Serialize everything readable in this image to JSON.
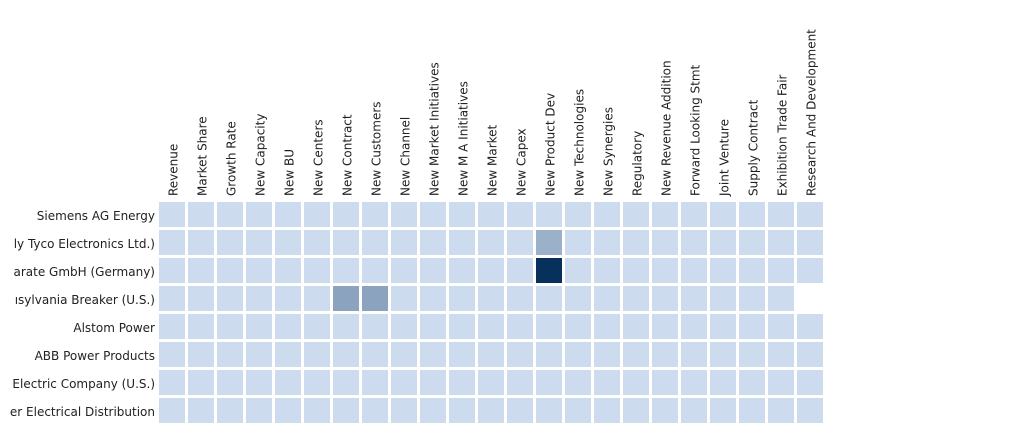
{
  "chart_data": {
    "type": "heatmap",
    "title": "",
    "xlabel": "",
    "ylabel": "",
    "columns": [
      "Revenue",
      "Market Share",
      "Growth Rate",
      "New Capacity",
      "New BU",
      "New Centers",
      "New Contract",
      "New Customers",
      "New Channel",
      "New Market Initiatives",
      "New M A Initiatives",
      "New Market",
      "New Capex",
      "New Product Dev",
      "New Technologies",
      "New Synergies",
      "Regulatory",
      "New Revenue Addition",
      "Forward Looking Stmt",
      "Joint Venture",
      "Supply Contract",
      "Exhibition Trade Fair",
      "Research And Development"
    ],
    "rows": [
      "Siemens AG Energy",
      "ly Tyco Electronics Ltd.)",
      "arate GmbH (Germany)",
      "ısylvania Breaker (U.S.)",
      "Alstom Power",
      "ABB Power Products",
      "Electric Company (U.S.)",
      "er Electrical Distribution"
    ],
    "values": [
      [
        0,
        0,
        0,
        0,
        0,
        0,
        0,
        0,
        0,
        0,
        0,
        0,
        0,
        0,
        0,
        0,
        0,
        0,
        0,
        0,
        0,
        0,
        0
      ],
      [
        0,
        0,
        0,
        0,
        0,
        0,
        0,
        0,
        0,
        0,
        0,
        0,
        0,
        0.25,
        0,
        0,
        0,
        0,
        0,
        0,
        0,
        0,
        0
      ],
      [
        0,
        0,
        0,
        0,
        0,
        0,
        0,
        0,
        0,
        0,
        0,
        0,
        0,
        1,
        0,
        0,
        0,
        0,
        0,
        0,
        0,
        0,
        0
      ],
      [
        0,
        0,
        0,
        0,
        0,
        0,
        0.33,
        0.33,
        0,
        0,
        0,
        0,
        0,
        0,
        0,
        0,
        0,
        0,
        0,
        0,
        0,
        0
      ],
      [
        0,
        0,
        0,
        0,
        0,
        0,
        0,
        0,
        0,
        0,
        0,
        0,
        0,
        0,
        0,
        0,
        0,
        0,
        0,
        0,
        0,
        0,
        0
      ],
      [
        0,
        0,
        0,
        0,
        0,
        0,
        0,
        0,
        0,
        0,
        0,
        0,
        0,
        0,
        0,
        0,
        0,
        0,
        0,
        0,
        0,
        0,
        0
      ],
      [
        0,
        0,
        0,
        0,
        0,
        0,
        0,
        0,
        0,
        0,
        0,
        0,
        0,
        0,
        0,
        0,
        0,
        0,
        0,
        0,
        0,
        0,
        0
      ],
      [
        0,
        0,
        0,
        0,
        0,
        0,
        0,
        0,
        0,
        0,
        0,
        0,
        0,
        0,
        0,
        0,
        0,
        0,
        0,
        0,
        0,
        0,
        0
      ]
    ],
    "color_scale": {
      "min_color": "#ccdcee",
      "max_color": "#08305d"
    },
    "legend": "none",
    "grid": false
  }
}
